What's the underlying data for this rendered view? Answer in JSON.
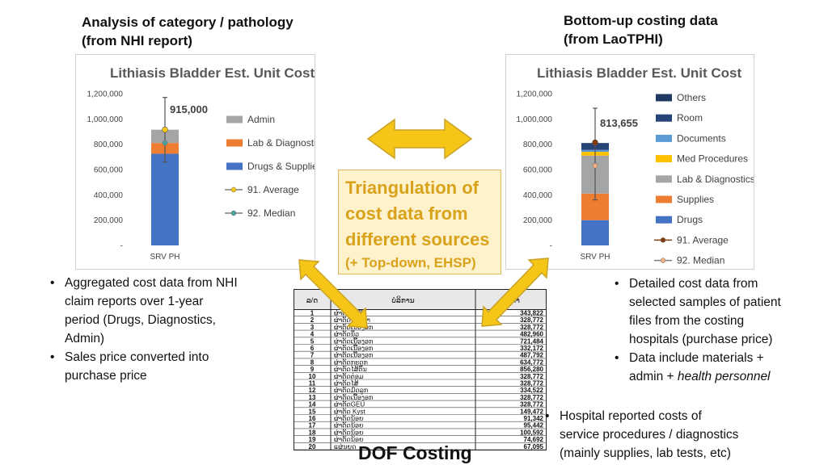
{
  "headers": {
    "left_line1": "Analysis of category / pathology",
    "left_line2": "(from NHI report)",
    "right_line1": "Bottom-up costing data",
    "right_line2": "(from LaoTPHI)"
  },
  "triangulation": {
    "line1": "Triangulation of",
    "line2": "cost data from",
    "line3": "different sources",
    "line4": "(+ Top-down, EHSP)"
  },
  "left_bullets": [
    "Aggregated cost data from NHI",
    "claim reports over 1-year",
    "period (Drugs, Diagnostics,",
    "Admin)",
    "Sales price converted into",
    "purchase price"
  ],
  "right_bullets": {
    "b1": [
      "Detailed cost data from",
      "selected samples of patient",
      "files from the costing",
      "hospitals (purchase price)"
    ],
    "b2_line1": "Data include materials +",
    "b2_line2_plain": "admin + ",
    "b2_line2_italic": "health personnel"
  },
  "bottom_bullets": [
    "Hospital reported costs of",
    "service procedures / diagnostics",
    "(mainly supplies, lab tests, etc)"
  ],
  "dof_label": "DOF Costing",
  "colors": {
    "drugs": "#4472c4",
    "lab": "#ed7d31",
    "admin": "#a5a5a5",
    "med_procedures": "#ffc000",
    "documents": "#5b9bd5",
    "room": "#264478",
    "others": "#1f3864",
    "arrow_fill": "#f5c518",
    "arrow_stroke": "#c9a227",
    "average_left": "#f5c518",
    "median_left": "#4aa3a0",
    "average_right": "#843c0c",
    "median_right": "#f4b183"
  },
  "table": {
    "col1_header": "ລ/ດ",
    "col2_header": "ບໍລິການ",
    "col3_header": "ລາຄາ",
    "rows": [
      {
        "no": "1",
        "name": "ຜ່າຕັດໄສ້ຕິ່ງ",
        "value": "343,822"
      },
      {
        "no": "2",
        "name": "ຜ່າຕັດໄສ້ວິທາ",
        "value": "328,772"
      },
      {
        "no": "3",
        "name": "ຜ່າຕັດເນື້ອງອກ",
        "value": "328,772"
      },
      {
        "no": "4",
        "name": "ຜ່າຕັດນິ່ວ",
        "value": "482,960"
      },
      {
        "no": "5",
        "name": "ຜ່າຕັດເນື້ອງອກ",
        "value": "721,484"
      },
      {
        "no": "6",
        "name": "ຜ່າຕັດເນື້ອງອກ",
        "value": "332,172"
      },
      {
        "no": "7",
        "name": "ຜ່າຕັດເນື້ອງອກ",
        "value": "487,792"
      },
      {
        "no": "8",
        "name": "ຜ່າຕັດກະດູກ",
        "value": "634,772"
      },
      {
        "no": "9",
        "name": "ຜ່າຕັດໄສ້ຕັນ",
        "value": "856,280"
      },
      {
        "no": "10",
        "name": "ຜ່າຕັດຕ່ອມ",
        "value": "328,772"
      },
      {
        "no": "11",
        "name": "ຜ່າຕັດໄສ້",
        "value": "328,772"
      },
      {
        "no": "12",
        "name": "ຜ່າຕັດມົດລູກ",
        "value": "334,522"
      },
      {
        "no": "13",
        "name": "ຜ່າຕັດເນື້ອງອກ",
        "value": "328,772"
      },
      {
        "no": "14",
        "name": "ຜ່າຕັດGEU",
        "value": "328,772"
      },
      {
        "no": "15",
        "name": "ຜ່າຕັດ Kyst",
        "value": "149,472"
      },
      {
        "no": "16",
        "name": "ຜ່າຕັດນ້ອຍ",
        "value": "91,342"
      },
      {
        "no": "17",
        "name": "ຜ່າຕັດນ້ອຍ",
        "value": "95,442"
      },
      {
        "no": "18",
        "name": "ຜ່າຕັດນ້ອຍ",
        "value": "100,592"
      },
      {
        "no": "19",
        "name": "ຜ່າຕັດນ້ອຍ",
        "value": "74,692"
      },
      {
        "no": "20",
        "name": "ແຜ່ນຍູດ",
        "value": "67,095"
      }
    ]
  },
  "chart_data": [
    {
      "type": "bar",
      "stacked": true,
      "title": "Lithiasis Bladder Est. Unit Cost",
      "categories": [
        "SRV PH"
      ],
      "ylim": [
        0,
        1200000
      ],
      "yticks": [
        "1,200,000",
        "1,000,000",
        "800,000",
        "600,000",
        "400,000",
        "200,000",
        "-"
      ],
      "series": [
        {
          "name": "Drugs & Supplies",
          "values": [
            725000
          ]
        },
        {
          "name": "Lab & Diagnostics",
          "values": [
            85000
          ]
        },
        {
          "name": "Admin",
          "values": [
            105000
          ]
        }
      ],
      "average": 915000,
      "average_label": "915,000",
      "median": 810000,
      "error_range": [
        660000,
        1170000
      ],
      "legend": [
        "Admin",
        "Lab & Diagnostics",
        "Drugs & Supplies",
        "91. Average",
        "92. Median"
      ]
    },
    {
      "type": "bar",
      "stacked": true,
      "title": "Lithiasis Bladder Est. Unit Cost",
      "categories": [
        "SRV PH"
      ],
      "ylim": [
        0,
        1200000
      ],
      "yticks": [
        "1,200,000",
        "1,000,000",
        "800,000",
        "600,000",
        "400,000",
        "200,000",
        "-"
      ],
      "series": [
        {
          "name": "Drugs",
          "values": [
            200000
          ]
        },
        {
          "name": "Supplies",
          "values": [
            210000
          ]
        },
        {
          "name": "Lab & Diagnostics",
          "values": [
            300000
          ]
        },
        {
          "name": "Med Procedures",
          "values": [
            30000
          ]
        },
        {
          "name": "Documents",
          "values": [
            15000
          ]
        },
        {
          "name": "Room",
          "values": [
            50000
          ]
        },
        {
          "name": "Others",
          "values": [
            5000
          ]
        }
      ],
      "average": 813655,
      "average_label": "813,655",
      "median": 630000,
      "error_range": [
        360000,
        1085000
      ],
      "legend": [
        "Others",
        "Room",
        "Documents",
        "Med Procedures",
        "Lab & Diagnostics",
        "Supplies",
        "Drugs",
        "91. Average",
        "92. Median"
      ]
    }
  ]
}
